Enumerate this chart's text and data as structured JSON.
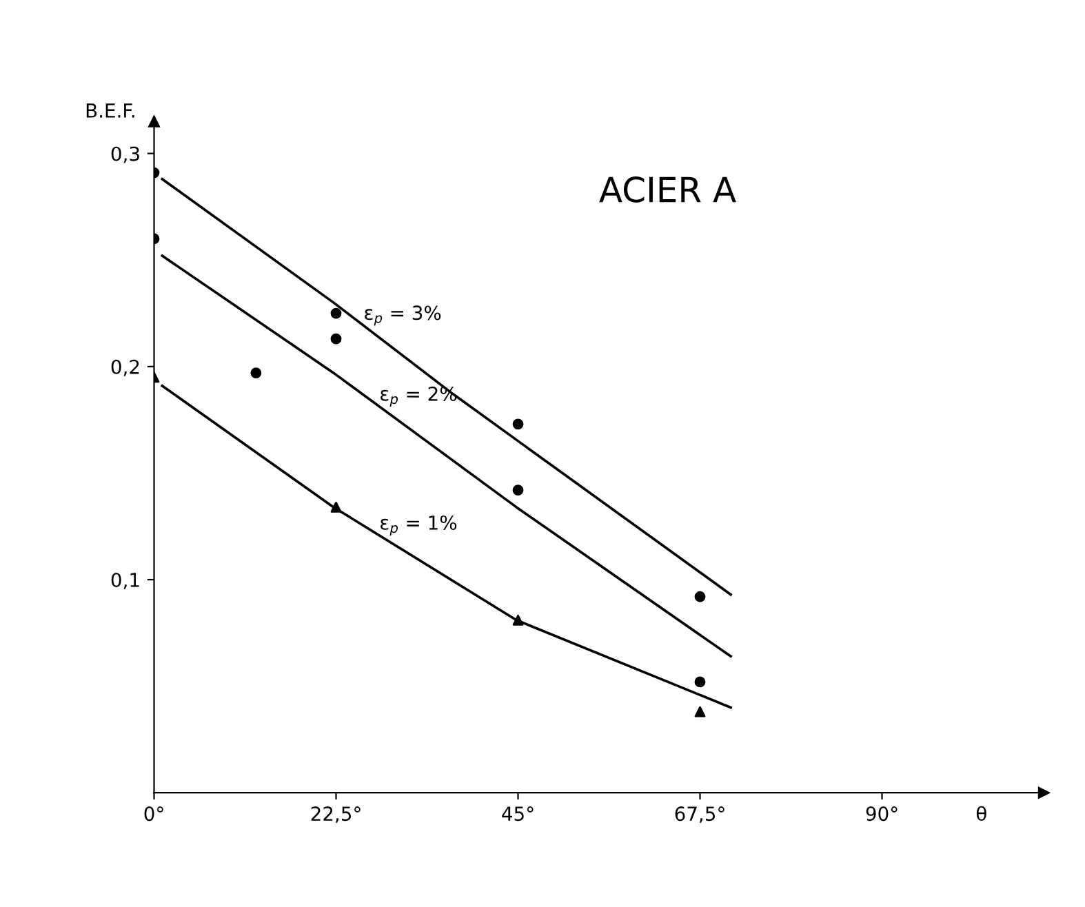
{
  "chart_data": {
    "type": "scatter",
    "title": "ACIER A",
    "xlabel": "θ",
    "ylabel": "B.E.F.",
    "xlim": [
      0,
      110
    ],
    "ylim": [
      0,
      0.315
    ],
    "xticks": [
      {
        "value": 0,
        "label": "0°"
      },
      {
        "value": 22.5,
        "label": "22,5°"
      },
      {
        "value": 45,
        "label": "45°"
      },
      {
        "value": 67.5,
        "label": "67,5°"
      },
      {
        "value": 90,
        "label": "90°"
      }
    ],
    "yticks": [
      {
        "value": 0.1,
        "label": "0,1"
      },
      {
        "value": 0.2,
        "label": "0,2"
      },
      {
        "value": 0.3,
        "label": "0,3"
      }
    ],
    "grid": false,
    "legend": false,
    "series": [
      {
        "name": "ε$_{p}$ = 3%",
        "type": "line",
        "color": "#000000",
        "x": [
          1.0,
          22.2,
          37.0,
          71.3
        ],
        "values": [
          0.288,
          0.23,
          0.187,
          0.093
        ]
      },
      {
        "name": "ε$_{p}$ = 2%",
        "type": "line",
        "color": "#000000",
        "x": [
          1.0,
          22.2,
          44.8,
          71.3
        ],
        "values": [
          0.252,
          0.197,
          0.134,
          0.064
        ]
      },
      {
        "name": "ε$_{p}$ = 1%",
        "type": "line",
        "color": "#000000",
        "x": [
          1.0,
          22.2,
          44.8,
          71.3
        ],
        "values": [
          0.191,
          0.134,
          0.081,
          0.04
        ]
      },
      {
        "marker": "circle",
        "color": "#000000",
        "x": [
          0,
          22.5,
          45,
          67.5
        ],
        "values": [
          0.291,
          0.225,
          0.173,
          0.092
        ]
      },
      {
        "marker": "circle",
        "color": "#000000",
        "x": [
          0,
          22.5,
          45,
          67.5
        ],
        "values": [
          0.26,
          0.213,
          0.142,
          0.052
        ]
      },
      {
        "marker": "triangle",
        "color": "#000000",
        "x": [
          0,
          22.5,
          45,
          67.5
        ],
        "values": [
          0.195,
          0.134,
          0.081,
          0.038
        ]
      },
      {
        "marker": "circle",
        "color": "#000000",
        "x": [
          12.6
        ],
        "values": [
          0.197
        ]
      }
    ]
  }
}
